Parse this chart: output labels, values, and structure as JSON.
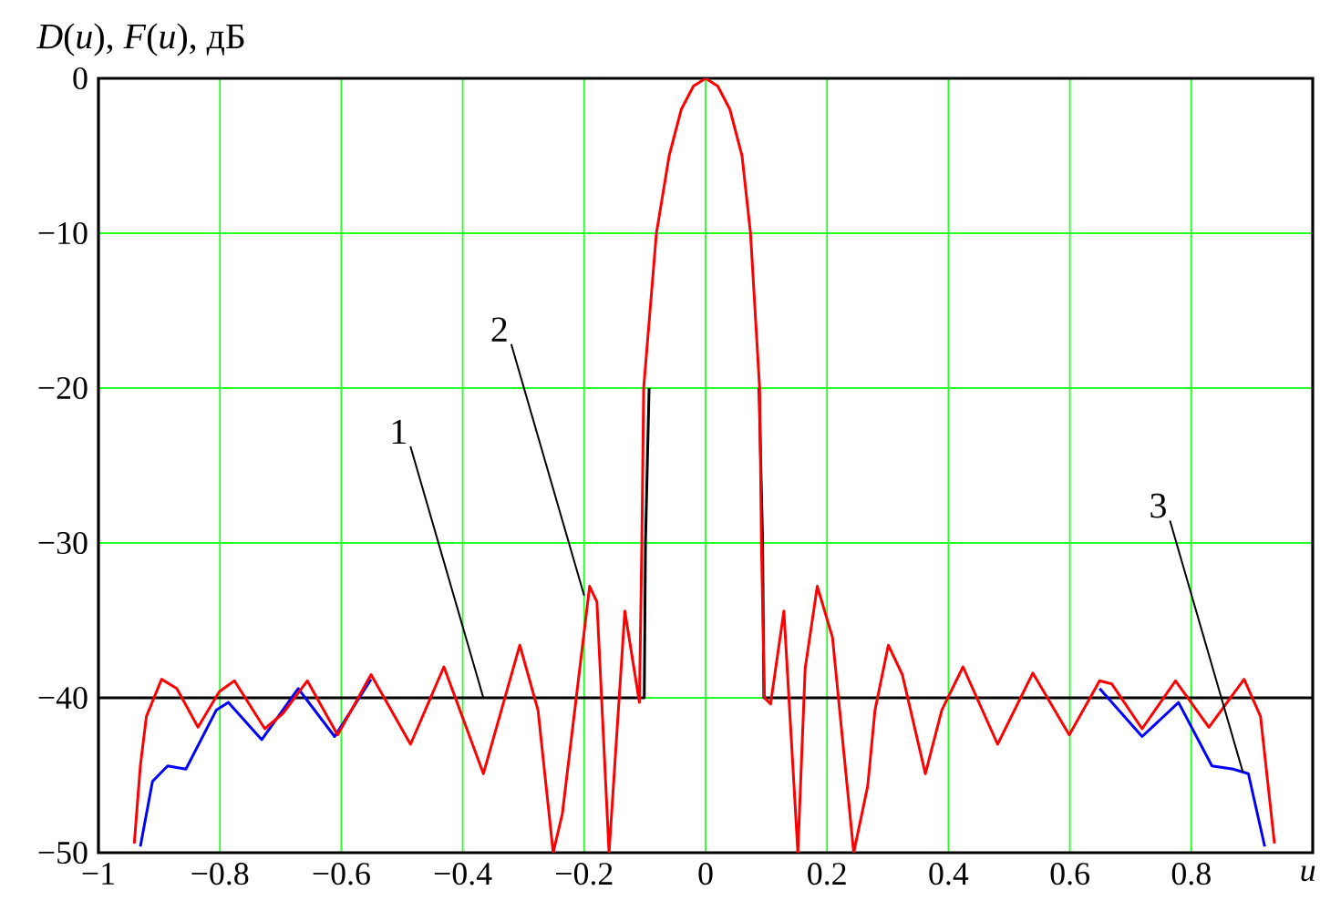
{
  "chart_data": {
    "type": "line",
    "xlabel": "u",
    "ylabel": "*D*(*u*), *F*(*u*), дБ",
    "xlim": [
      -1,
      1
    ],
    "ylim": [
      -50,
      0
    ],
    "xticks": [
      {
        "value": -1,
        "label": "−1"
      },
      {
        "value": -0.8,
        "label": "−0.8"
      },
      {
        "value": -0.6,
        "label": "−0.6"
      },
      {
        "value": -0.4,
        "label": "−0.4"
      },
      {
        "value": -0.2,
        "label": "−0.2"
      },
      0,
      0.2,
      0.4,
      0.6,
      0.8
    ],
    "yticks": [
      {
        "value": -50,
        "label": "−50"
      },
      {
        "value": -40,
        "label": "−40"
      },
      {
        "value": -30,
        "label": "−30"
      },
      {
        "value": -20,
        "label": "−20"
      },
      {
        "value": -10,
        "label": "−10"
      },
      0
    ],
    "grid": true,
    "series": [
      {
        "color": "#000000",
        "x": [
          -1,
          -0.101,
          -0.099,
          -0.093,
          0,
          0.088,
          0.094,
          0.096,
          1
        ],
        "values": [
          -40,
          -40,
          -30,
          -20,
          null,
          -20,
          -30,
          -40,
          -40
        ]
      },
      {
        "color": "#0000ff",
        "x": [
          -0.931,
          -0.911,
          -0.886,
          -0.856,
          -0.806,
          -0.786,
          -0.731,
          -0.671,
          -0.611,
          -0.551,
          0,
          0.649,
          0.719,
          0.779,
          0.834,
          0.869,
          0.894,
          0.921
        ],
        "values": [
          -49.6,
          -45.4,
          -44.4,
          -44.6,
          -40.8,
          -40.3,
          -42.7,
          -39.4,
          -42.5,
          -38.8,
          null,
          -39.4,
          -42.5,
          -40.3,
          -44.4,
          -44.6,
          -44.9,
          -49.6
        ]
      },
      {
        "color": "#ff0000",
        "x": [
          -0.941,
          -0.931,
          -0.921,
          -0.896,
          -0.871,
          -0.836,
          -0.801,
          -0.776,
          -0.726,
          -0.696,
          -0.656,
          -0.606,
          -0.551,
          -0.486,
          -0.431,
          -0.366,
          -0.306,
          -0.276,
          -0.251,
          -0.236,
          -0.191,
          -0.179,
          -0.159,
          -0.133,
          -0.109,
          -0.105,
          -0.102,
          -0.081,
          -0.06,
          -0.04,
          -0.02,
          0,
          0.02,
          0.04,
          0.06,
          0.074,
          0.089,
          0.092,
          0.097,
          0.107,
          0.129,
          0.152,
          0.164,
          0.184,
          0.209,
          0.244,
          0.267,
          0.279,
          0.301,
          0.324,
          0.362,
          0.389,
          0.424,
          0.481,
          0.539,
          0.599,
          0.649,
          0.669,
          0.719,
          0.774,
          0.829,
          0.887,
          0.914,
          0.937
        ],
        "values": [
          -49.4,
          -44.4,
          -41.2,
          -38.8,
          -39.4,
          -41.9,
          -39.6,
          -38.9,
          -42.0,
          -41.0,
          -38.9,
          -42.4,
          -38.5,
          -43.0,
          -38.0,
          -44.9,
          -36.6,
          -40.8,
          -50,
          -47.5,
          -32.8,
          -33.8,
          -50,
          -34.4,
          -40.3,
          -30,
          -20,
          -10,
          -5,
          -2,
          -0.5,
          0,
          -0.5,
          -2,
          -5,
          -10,
          -20,
          -30,
          -40,
          -40.4,
          -34.4,
          -50,
          -38.1,
          -32.8,
          -36.1,
          -50,
          -45.7,
          -40.8,
          -36.6,
          -38.5,
          -44.9,
          -40.8,
          -38.0,
          -43.0,
          -38.4,
          -42.4,
          -38.9,
          -39.1,
          -42.0,
          -38.9,
          -41.9,
          -38.8,
          -41.2,
          -49.4
        ]
      }
    ],
    "annotations": [
      {
        "text": "1",
        "x": -0.366,
        "y": -40
      },
      {
        "text": "2",
        "x": -0.2,
        "y": -33.4
      },
      {
        "text": "3",
        "x": 0.885,
        "y": -44.8
      }
    ]
  }
}
